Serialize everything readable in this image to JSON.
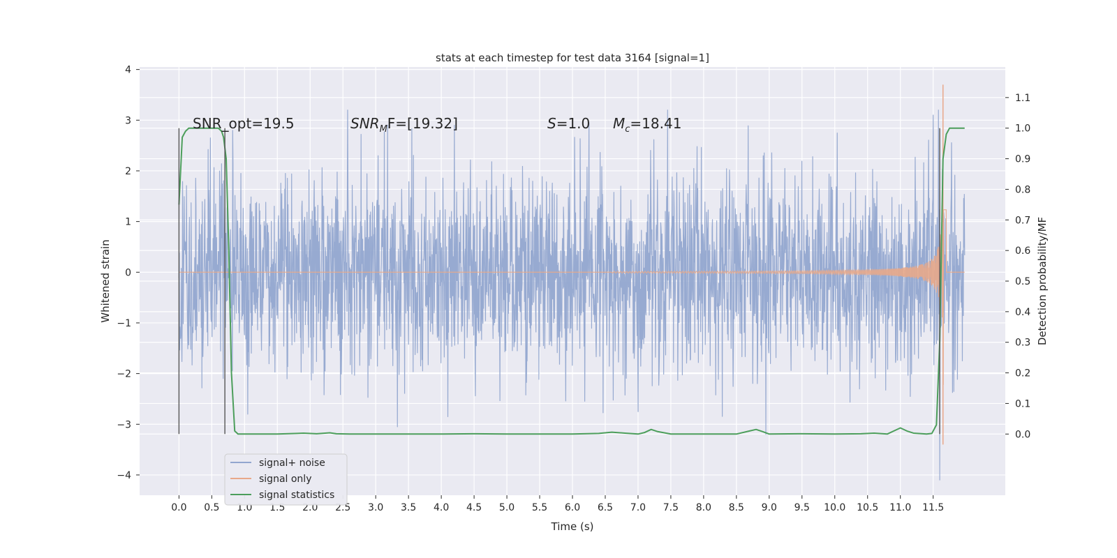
{
  "chart_data": {
    "type": "line",
    "title": "stats at each timestep for test data 3164 [signal=1]",
    "xlabel": "Time (s)",
    "ylabel": "Whitened strain",
    "ylabel_right": "Detection probability/MF",
    "xlim": [
      -0.6,
      12.6
    ],
    "ylim": [
      -4.4,
      4.05
    ],
    "ylim_right": [
      -0.2,
      1.2
    ],
    "x_ticks": [
      "0.0",
      "0.5",
      "1.0",
      "1.5",
      "2.0",
      "2.5",
      "3.0",
      "3.5",
      "4.0",
      "4.5",
      "5.0",
      "5.5",
      "6.0",
      "6.5",
      "7.0",
      "7.5",
      "8.0",
      "8.5",
      "9.0",
      "9.5",
      "10.0",
      "10.5",
      "11.0",
      "11.5"
    ],
    "y_ticks": [
      "4",
      "3",
      "2",
      "1",
      "0",
      "−1",
      "−2",
      "−3",
      "−4"
    ],
    "y_right_ticks": [
      "1.1",
      "1.0",
      "0.9",
      "0.8",
      "0.7",
      "0.6",
      "0.5",
      "0.4",
      "0.3",
      "0.2",
      "0.1",
      "0.0"
    ],
    "grid": true,
    "legend_position": "lower-left",
    "annotations": [
      {
        "text": "SNR_opt=19.5"
      },
      {
        "text": "SNR",
        "sub": "M",
        "after": "F=[19.32]",
        "italic_main": true
      },
      {
        "text": "S",
        "after": "=1.0",
        "italic_main": true
      },
      {
        "text": "M",
        "sub": "c",
        "after": "=18.41",
        "italic_main": true
      }
    ],
    "vertical_markers_x": [
      0.0,
      0.7,
      11.6
    ],
    "series": [
      {
        "name": "signal+ noise",
        "color": "#92a6cf",
        "kind": "noise",
        "x_range": [
          0.0,
          11.98
        ],
        "core_band": [
          -1.5,
          1.7
        ],
        "peaks_x": [
          0.48,
          0.82,
          2.57,
          3.18,
          4.2,
          6.25,
          7.45,
          11.5,
          11.58
        ],
        "peaks_y": [
          2.65,
          2.8,
          3.2,
          2.9,
          2.9,
          2.95,
          3.2,
          3.1,
          3.2
        ],
        "troughs_x": [
          1.05,
          3.33,
          4.1,
          7.0,
          8.95,
          11.6
        ],
        "troughs_y": [
          -2.8,
          -3.05,
          -2.85,
          -2.75,
          -3.2,
          -4.1
        ]
      },
      {
        "name": "signal only",
        "color": "#e8a88a",
        "kind": "chirp",
        "x_range": [
          0.0,
          11.98
        ],
        "start_x": 6.6,
        "peak_x": 11.65,
        "peak_value": 3.7
      },
      {
        "name": "signal statistics",
        "color": "#4c9e5b",
        "axis": "right",
        "x": [
          0.0,
          0.05,
          0.1,
          0.15,
          0.2,
          0.3,
          0.4,
          0.5,
          0.6,
          0.65,
          0.68,
          0.72,
          0.76,
          0.8,
          0.85,
          0.9,
          1.0,
          1.2,
          1.5,
          1.8,
          1.9,
          2.1,
          2.3,
          2.4,
          2.6,
          3.0,
          4.0,
          4.5,
          5.0,
          6.0,
          6.4,
          6.6,
          6.8,
          7.0,
          7.1,
          7.2,
          7.3,
          7.5,
          8.0,
          8.5,
          8.7,
          8.8,
          8.9,
          9.0,
          9.5,
          10.0,
          10.4,
          10.6,
          10.8,
          10.9,
          11.0,
          11.1,
          11.2,
          11.4,
          11.48,
          11.55,
          11.6,
          11.65,
          11.7,
          11.75,
          11.8,
          11.9,
          11.98
        ],
        "y": [
          0.75,
          0.97,
          0.99,
          1.0,
          1.0,
          1.0,
          1.0,
          1.0,
          1.0,
          0.99,
          0.97,
          0.9,
          0.6,
          0.2,
          0.01,
          0.0,
          0.0,
          0.0,
          0.0,
          0.002,
          0.003,
          0.001,
          0.004,
          0.001,
          0.0,
          0.0,
          0.0,
          0.001,
          0.0,
          0.0,
          0.002,
          0.006,
          0.003,
          0.0,
          0.005,
          0.015,
          0.008,
          0.0,
          0.0,
          0.0,
          0.01,
          0.015,
          0.008,
          0.0,
          0.001,
          0.0,
          0.001,
          0.003,
          0.0,
          0.01,
          0.02,
          0.01,
          0.003,
          0.0,
          0.002,
          0.03,
          0.3,
          0.9,
          0.98,
          1.0,
          1.0,
          1.0,
          1.0
        ]
      }
    ]
  }
}
